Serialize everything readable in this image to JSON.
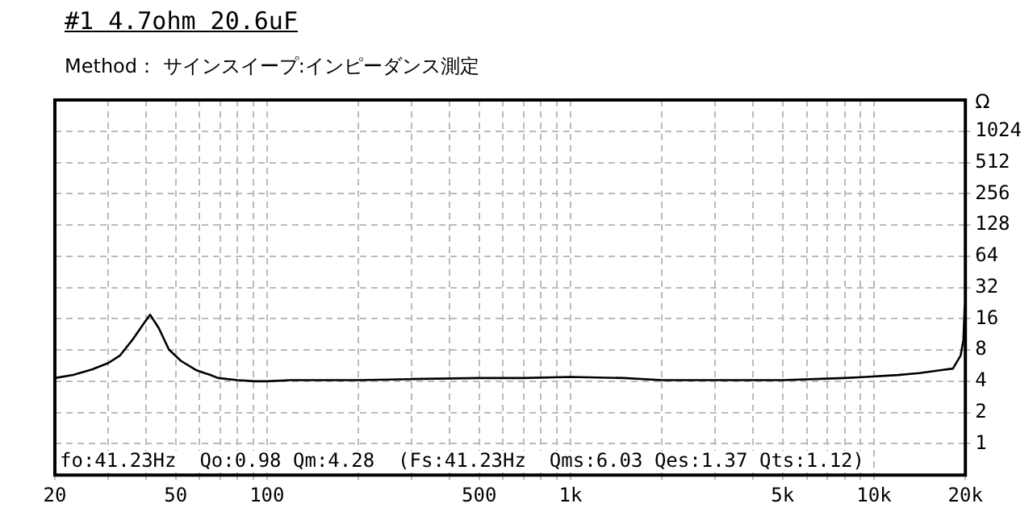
{
  "chart_data": {
    "type": "line",
    "title": "#1 4.7ohm 20.6uF",
    "subtitle": "Method： サインスイープ:インピーダンス測定",
    "ylabel": "Ω",
    "x": [
      20,
      23,
      26.5,
      30,
      32.8,
      36,
      39,
      41.2,
      44,
      47.5,
      52,
      58.6,
      65,
      69,
      80,
      91,
      100,
      120,
      150,
      200,
      300,
      500,
      700,
      1000,
      1500,
      2000,
      3000,
      5000,
      8000,
      9400,
      12000,
      14100,
      16500,
      18200,
      19300,
      19700,
      19900,
      20000
    ],
    "series": [
      {
        "color": "#000000",
        "values": [
          4.3,
          4.6,
          5.2,
          6,
          7.1,
          10,
          14,
          17.5,
          13,
          8.1,
          6.3,
          5.1,
          4.6,
          4.3,
          4.1,
          4,
          4,
          4.1,
          4.1,
          4.1,
          4.2,
          4.3,
          4.3,
          4.4,
          4.3,
          4.1,
          4.1,
          4.1,
          4.3,
          4.4,
          4.6,
          4.8,
          5.1,
          5.3,
          7.1,
          10,
          21,
          22
        ]
      }
    ],
    "xlim": [
      20,
      20000
    ],
    "xticks": [
      20,
      {
        "value": 30,
        "label": null
      },
      {
        "value": 40,
        "label": null
      },
      50,
      {
        "value": 60,
        "label": null
      },
      {
        "value": 70,
        "label": null
      },
      {
        "value": 80,
        "label": null
      },
      {
        "value": 90,
        "label": null
      },
      100,
      {
        "value": 200,
        "label": null
      },
      {
        "value": 300,
        "label": null
      },
      {
        "value": 400,
        "label": null
      },
      500,
      {
        "value": 600,
        "label": null
      },
      {
        "value": 700,
        "label": null
      },
      {
        "value": 800,
        "label": null
      },
      {
        "value": 900,
        "label": null
      },
      {
        "value": 1000,
        "label": "1k"
      },
      {
        "value": 2000,
        "label": null
      },
      {
        "value": 3000,
        "label": null
      },
      {
        "value": 4000,
        "label": null
      },
      {
        "value": 5000,
        "label": "5k"
      },
      {
        "value": 6000,
        "label": null
      },
      {
        "value": 7000,
        "label": null
      },
      {
        "value": 8000,
        "label": null
      },
      {
        "value": 9000,
        "label": null
      },
      {
        "value": 10000,
        "label": "10k"
      },
      {
        "value": 20000,
        "label": "20k"
      }
    ],
    "ylim": [
      0.5,
      2048
    ],
    "yticks": [
      1,
      2,
      4,
      8,
      16,
      32,
      64,
      128,
      256,
      512,
      1024
    ],
    "log": "xy",
    "grid": true,
    "legend": false,
    "marker": "none",
    "line_style": "solid",
    "annotations": [
      "fo:41.23Hz  Qo:0.98 Qm:4.28  (Fs:41.23Hz  Qms:6.03 Qes:1.37 Qts:1.12)"
    ]
  }
}
